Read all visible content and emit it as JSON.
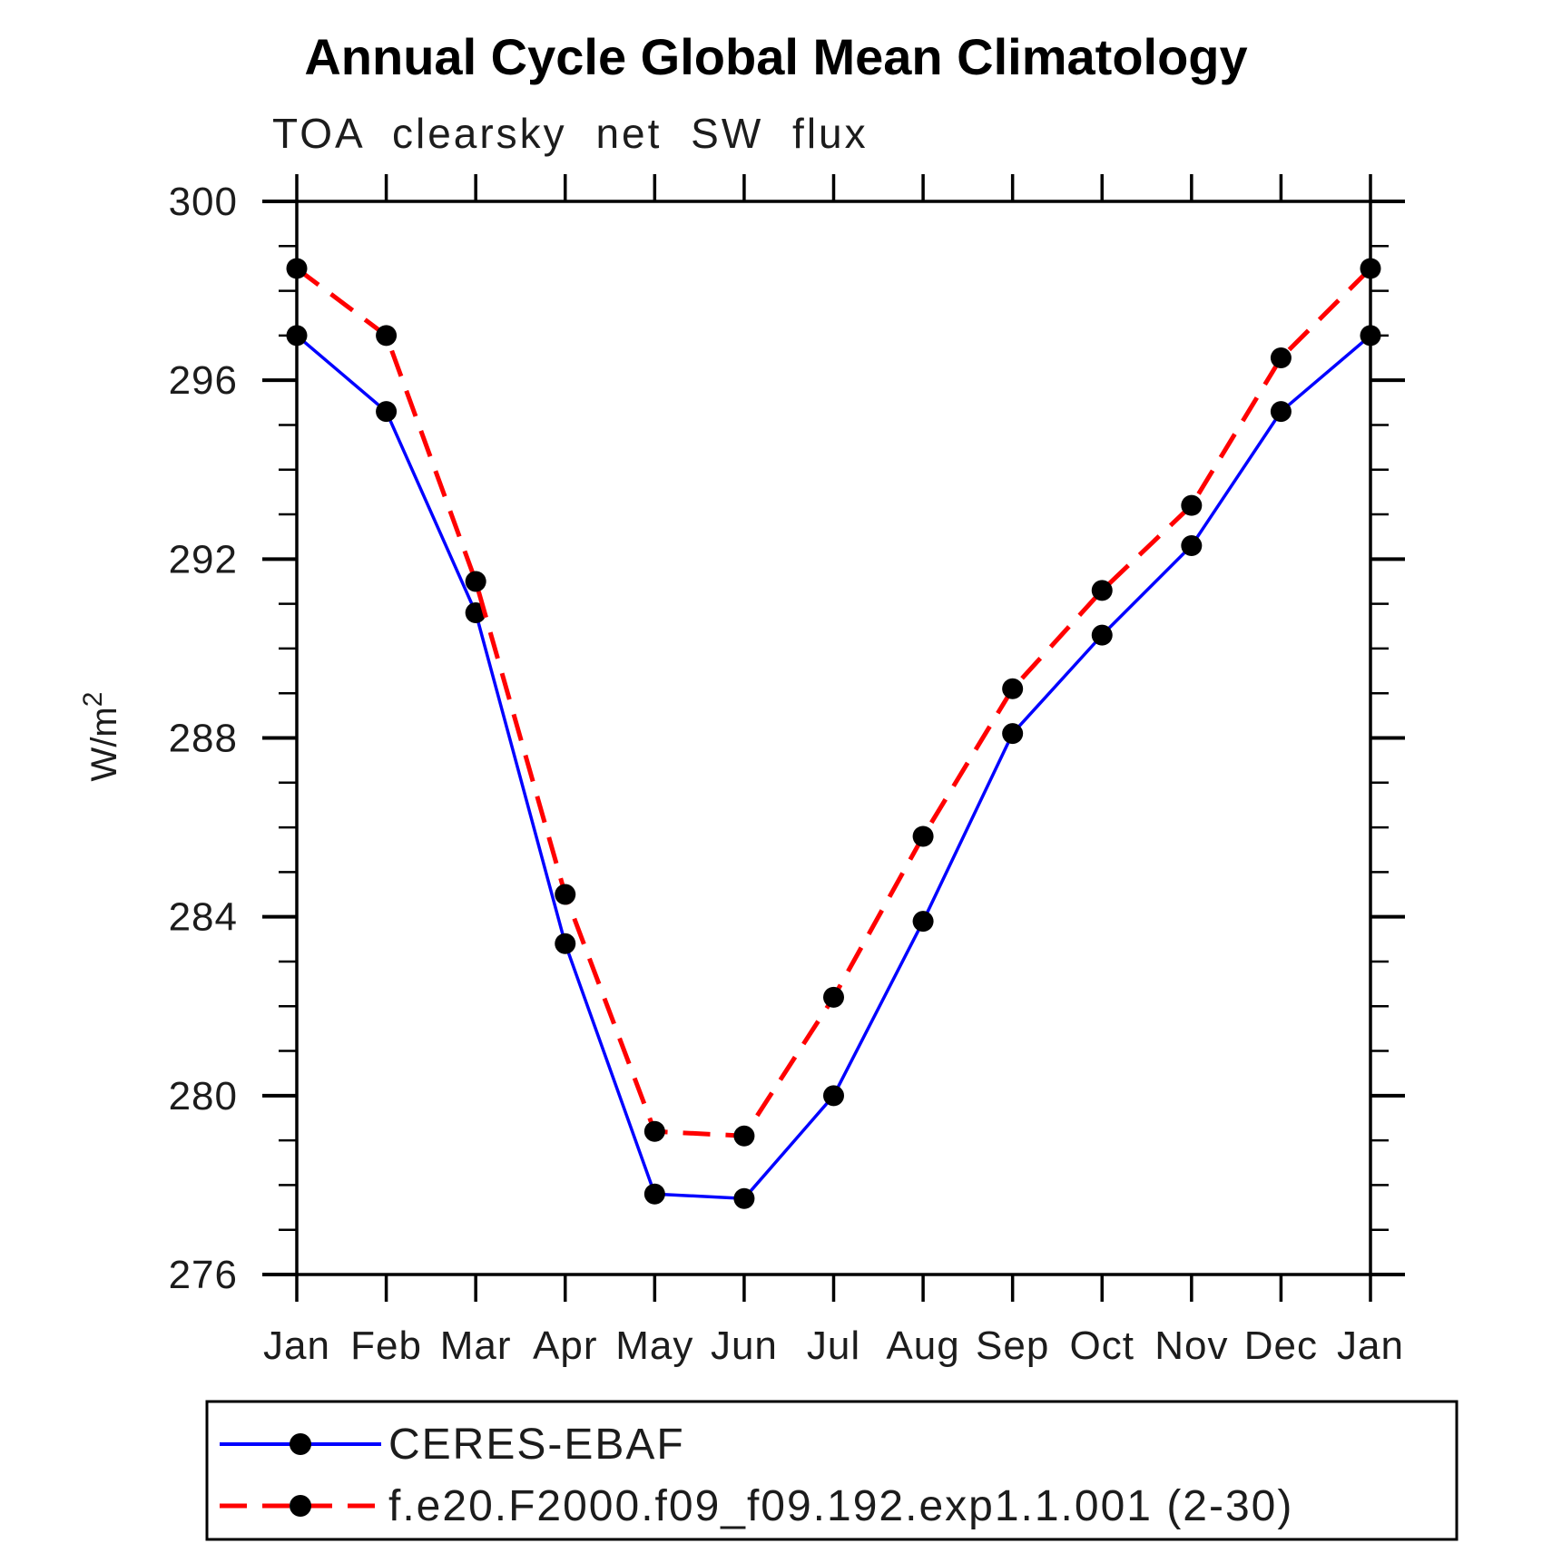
{
  "chart_data": {
    "type": "line",
    "title": "Annual Cycle Global Mean Climatology",
    "subtitle": "TOA clearsky net SW flux",
    "ylabel": "W/m²",
    "xlabel": "",
    "x_labels": [
      "Jan",
      "Feb",
      "Mar",
      "Apr",
      "May",
      "Jun",
      "Jul",
      "Aug",
      "Sep",
      "Oct",
      "Nov",
      "Dec",
      "Jan"
    ],
    "ylim": [
      276,
      300
    ],
    "yticks_major": [
      276,
      280,
      284,
      288,
      292,
      296,
      300
    ],
    "ytick_minor_step": 1,
    "grid": "off",
    "legend_position": "below-plot-framed",
    "series": [
      {
        "name": "CERES-EBAF",
        "color": "#0000ff",
        "line_style": "solid",
        "marker": "filled-circle",
        "marker_color": "#000000",
        "values": [
          297.0,
          295.3,
          290.8,
          283.4,
          277.8,
          277.7,
          280.0,
          283.9,
          288.1,
          290.3,
          292.3,
          295.3,
          297.0
        ]
      },
      {
        "name": "f.e20.F2000.f09_f09.192.exp1.1.001 (2-30)",
        "color": "#ff0000",
        "line_style": "dashed",
        "marker": "filled-circle",
        "marker_color": "#000000",
        "values": [
          298.5,
          297.0,
          291.5,
          284.5,
          279.2,
          279.1,
          282.2,
          285.8,
          289.1,
          291.3,
          293.2,
          296.5,
          298.5
        ]
      }
    ]
  }
}
